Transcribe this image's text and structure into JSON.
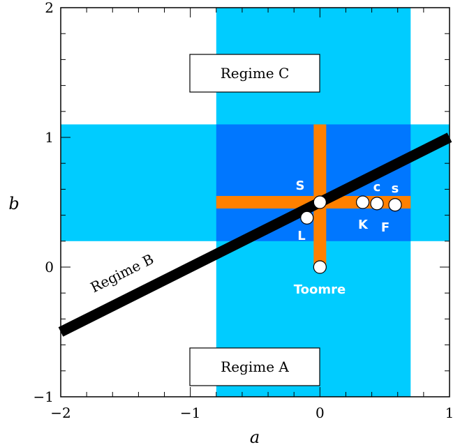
{
  "axes": {
    "xlabel": "a",
    "ylabel": "b",
    "xlim": [
      -2,
      1
    ],
    "ylim": [
      -1,
      2
    ],
    "x_ticks": [
      "−2",
      "−1",
      "0",
      "1"
    ],
    "y_ticks": [
      "−1",
      "0",
      "1",
      "2"
    ]
  },
  "regions": {
    "a_band": [
      -0.8,
      0.7
    ],
    "b_band": [
      0.2,
      1.1
    ],
    "band_color": "#00ccff",
    "overlap_color": "#0077ff"
  },
  "orange_cross": {
    "color": "#ff8000",
    "horizontal": {
      "b": 0.5,
      "a_range": [
        0,
        0.7
      ],
      "a_start": -0.8
    },
    "vertical": {
      "a": 0,
      "b_range": [
        0,
        1.1
      ]
    }
  },
  "regime_line": {
    "slope": 0.5,
    "intercept": 0.5,
    "color": "#000000"
  },
  "labels": {
    "regime_a": "Regime A",
    "regime_b": "Regime B",
    "regime_c": "Regime C",
    "toomre": "Toomre"
  },
  "points": [
    {
      "id": "S",
      "label": "S",
      "a": 0.0,
      "b": 0.5
    },
    {
      "id": "L",
      "label": "L",
      "a": -0.1,
      "b": 0.38
    },
    {
      "id": "K",
      "label": "K",
      "a": 0.33,
      "b": 0.5
    },
    {
      "id": "c",
      "label": "c",
      "a": 0.44,
      "b": 0.49
    },
    {
      "id": "F",
      "label": "F",
      "a": 0.44,
      "b": 0.49
    },
    {
      "id": "s",
      "label": "s",
      "a": 0.58,
      "b": 0.48
    },
    {
      "id": "Toomre",
      "label": "Toomre",
      "a": 0.0,
      "b": 0.0
    }
  ]
}
